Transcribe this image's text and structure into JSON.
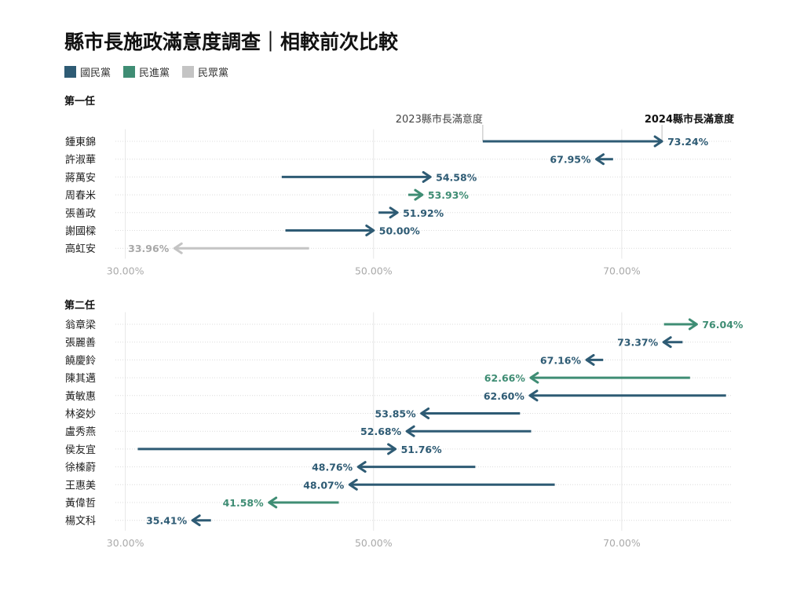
{
  "title": "縣市長施政滿意度調查｜相較前次比較",
  "legend": [
    {
      "label": "國民黨",
      "color": "#2e5b74"
    },
    {
      "label": "民進黨",
      "color": "#3f8d74"
    },
    {
      "label": "民眾黨",
      "color": "#c4c4c4"
    }
  ],
  "chart_data": {
    "type": "arrow",
    "x_tick_labels": [
      "30.00%",
      "50.00%",
      "70.00%"
    ],
    "x_ticks": [
      30,
      50,
      70
    ],
    "xlim": [
      29.2,
      78.8
    ],
    "from_label": "2023縣市長滿意度",
    "to_label": "2024縣市長滿意度",
    "panels": [
      {
        "label": "第一任",
        "rows": [
          {
            "name": "鍾東錦",
            "party": "國民黨",
            "prev": 58.8,
            "curr": 73.24,
            "label": "73.24%"
          },
          {
            "name": "許淑華",
            "party": "國民黨",
            "prev": 69.3,
            "curr": 67.95,
            "label": "67.95%"
          },
          {
            "name": "蔣萬安",
            "party": "國民黨",
            "prev": 42.6,
            "curr": 54.58,
            "label": "54.58%"
          },
          {
            "name": "周春米",
            "party": "民進黨",
            "prev": 52.8,
            "curr": 53.93,
            "label": "53.93%"
          },
          {
            "name": "張善政",
            "party": "國民黨",
            "prev": 50.4,
            "curr": 51.92,
            "label": "51.92%"
          },
          {
            "name": "謝國樑",
            "party": "國民黨",
            "prev": 42.9,
            "curr": 50.0,
            "label": "50.00%"
          },
          {
            "name": "高虹安",
            "party": "民眾黨",
            "prev": 44.8,
            "curr": 33.96,
            "label": "33.96%"
          }
        ]
      },
      {
        "label": "第二任",
        "rows": [
          {
            "name": "翁章梁",
            "party": "民進黨",
            "prev": 73.4,
            "curr": 76.04,
            "label": "76.04%"
          },
          {
            "name": "張麗善",
            "party": "國民黨",
            "prev": 74.9,
            "curr": 73.37,
            "label": "73.37%"
          },
          {
            "name": "饒慶鈴",
            "party": "國民黨",
            "prev": 68.5,
            "curr": 67.16,
            "label": "67.16%"
          },
          {
            "name": "陳其邁",
            "party": "民進黨",
            "prev": 75.5,
            "curr": 62.66,
            "label": "62.66%"
          },
          {
            "name": "黃敏惠",
            "party": "國民黨",
            "prev": 78.4,
            "curr": 62.6,
            "label": "62.60%"
          },
          {
            "name": "林姿妙",
            "party": "國民黨",
            "prev": 61.8,
            "curr": 53.85,
            "label": "53.85%"
          },
          {
            "name": "盧秀燕",
            "party": "國民黨",
            "prev": 62.7,
            "curr": 52.68,
            "label": "52.68%"
          },
          {
            "name": "侯友宜",
            "party": "國民黨",
            "prev": 31.0,
            "curr": 51.76,
            "label": "51.76%"
          },
          {
            "name": "徐榛蔚",
            "party": "國民黨",
            "prev": 58.2,
            "curr": 48.76,
            "label": "48.76%"
          },
          {
            "name": "王惠美",
            "party": "國民黨",
            "prev": 64.6,
            "curr": 48.07,
            "label": "48.07%"
          },
          {
            "name": "黃偉哲",
            "party": "民進黨",
            "prev": 47.2,
            "curr": 41.58,
            "label": "41.58%"
          },
          {
            "name": "楊文科",
            "party": "國民黨",
            "prev": 36.9,
            "curr": 35.41,
            "label": "35.41%"
          }
        ]
      }
    ]
  }
}
